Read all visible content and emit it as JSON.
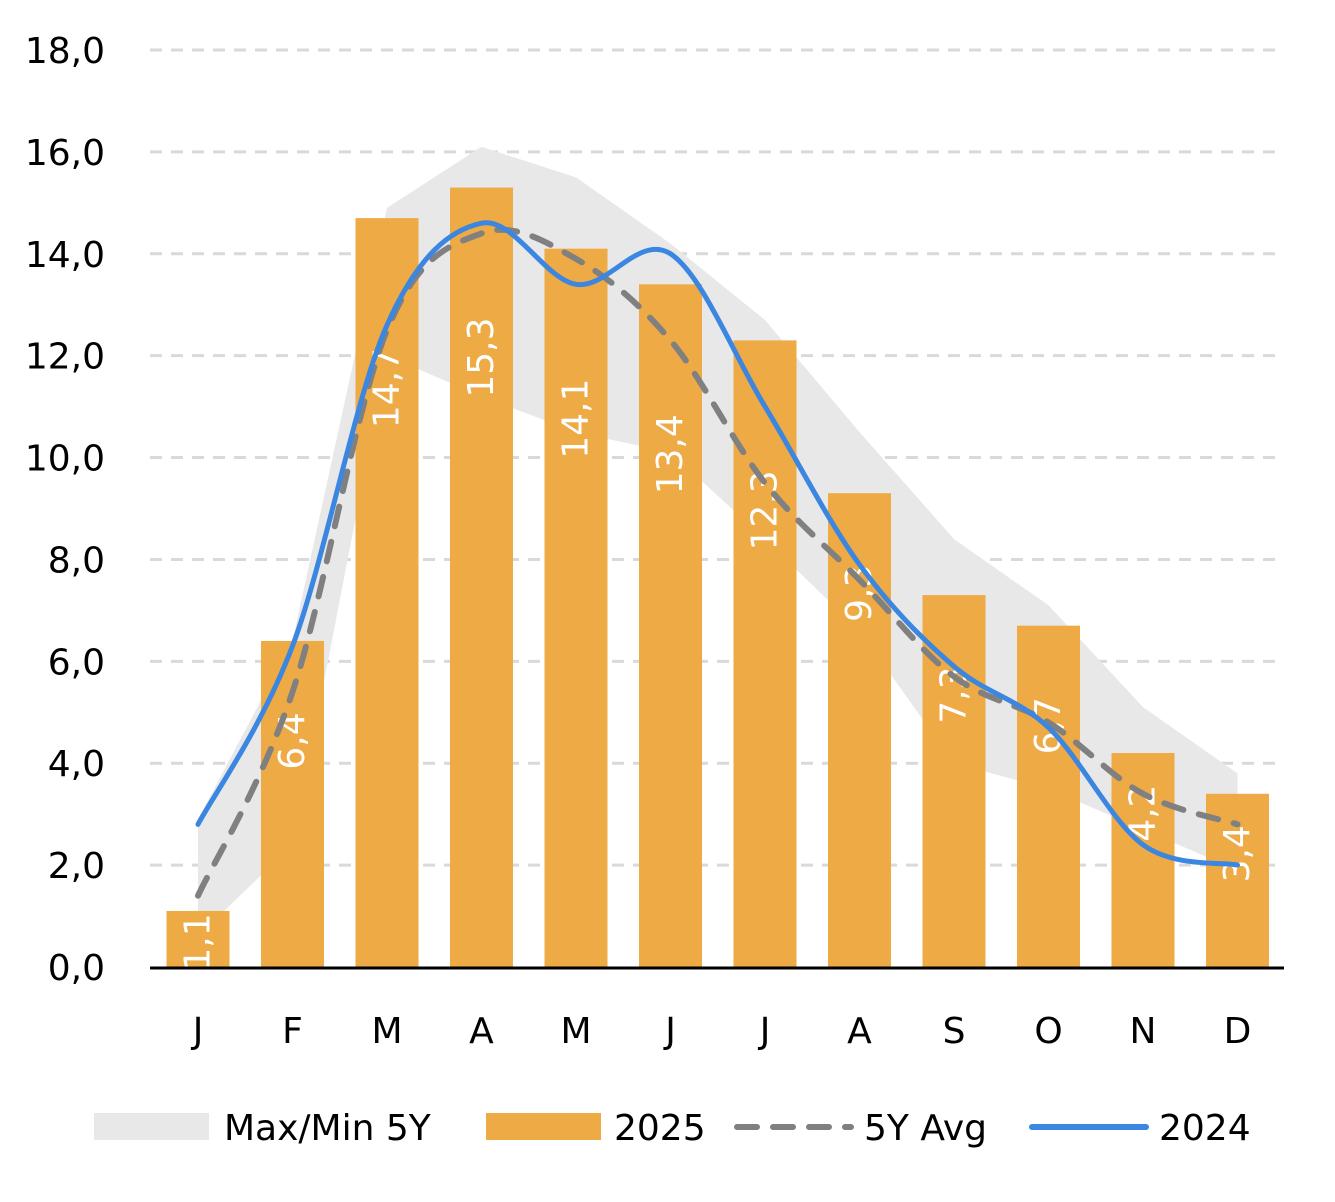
{
  "chart_data": {
    "type": "bar",
    "title": "",
    "xlabel": "",
    "ylabel": "",
    "ylim": [
      0,
      18
    ],
    "yticks": [
      "0,0",
      "2,0",
      "4,0",
      "6,0",
      "8,0",
      "10,0",
      "12,0",
      "14,0",
      "16,0",
      "18,0"
    ],
    "ytick_values": [
      0,
      2,
      4,
      6,
      8,
      10,
      12,
      14,
      16,
      18
    ],
    "grid": true,
    "legend_position": "bottom",
    "categories": [
      "J",
      "F",
      "M",
      "A",
      "M",
      "J",
      "J",
      "A",
      "S",
      "O",
      "N",
      "D"
    ],
    "series": [
      {
        "name": "Max/Min 5Y",
        "type": "area-band",
        "color": "#e8e8e8",
        "max": [
          2.9,
          6.4,
          14.9,
          16.1,
          15.5,
          14.2,
          12.7,
          10.5,
          8.4,
          7.1,
          5.1,
          3.8
        ],
        "min": [
          0.6,
          2.4,
          12.0,
          11.2,
          10.5,
          10.1,
          8.4,
          6.6,
          4.0,
          3.5,
          2.7,
          1.9
        ]
      },
      {
        "name": "2025",
        "type": "bar",
        "color": "#eeaa45",
        "values": [
          1.1,
          6.4,
          14.7,
          15.3,
          14.1,
          13.4,
          12.3,
          9.3,
          7.3,
          6.7,
          4.2,
          3.4
        ],
        "labels": [
          "1,1",
          "6,4",
          "14,7",
          "15,3",
          "14,1",
          "13,4",
          "12,3",
          "9,3",
          "7,3",
          "6,7",
          "4,2",
          "3,4"
        ]
      },
      {
        "name": "5Y Avg",
        "type": "line-dashed",
        "color": "#808080",
        "values": [
          1.4,
          5.4,
          12.5,
          14.4,
          13.9,
          12.3,
          9.5,
          7.6,
          5.7,
          4.8,
          3.4,
          2.8
        ]
      },
      {
        "name": "2024",
        "type": "line",
        "color": "#3a86e0",
        "values": [
          2.8,
          6.3,
          12.6,
          14.6,
          13.4,
          14.0,
          11.0,
          7.9,
          5.9,
          4.7,
          2.4,
          2.0
        ]
      }
    ]
  }
}
